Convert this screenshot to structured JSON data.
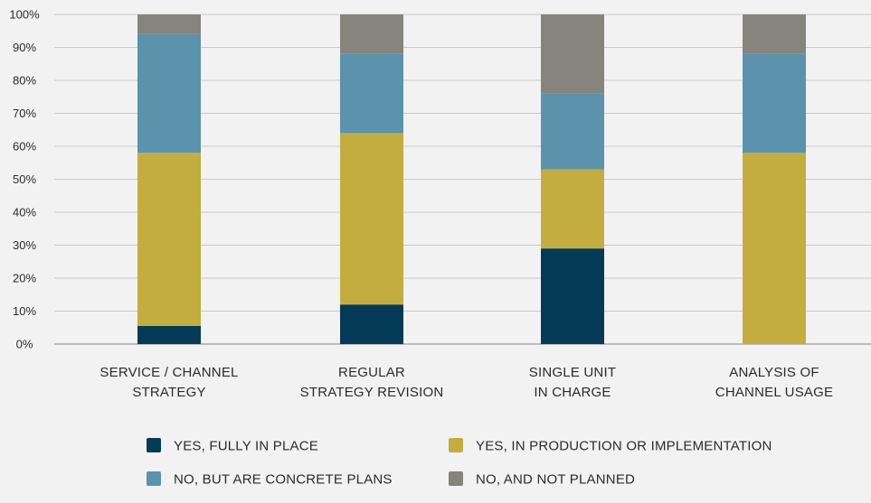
{
  "chart_data": {
    "type": "bar",
    "stacked": true,
    "title": "",
    "xlabel": "",
    "ylabel": "",
    "ylim": [
      0,
      100
    ],
    "yticks": [
      "0%",
      "10%",
      "20%",
      "30%",
      "40%",
      "50%",
      "60%",
      "70%",
      "80%",
      "90%",
      "100%"
    ],
    "grid": true,
    "legend_position": "bottom",
    "categories": [
      [
        "SERVICE / CHANNEL",
        "STRATEGY"
      ],
      [
        "REGULAR",
        "STRATEGY REVISION"
      ],
      [
        "SINGLE UNIT",
        "IN CHARGE"
      ],
      [
        "ANALYSIS OF",
        "CHANNEL USAGE"
      ]
    ],
    "series": [
      {
        "name": "YES, FULLY IN PLACE",
        "color": "#033b57",
        "values": [
          5.5,
          12,
          29,
          0
        ]
      },
      {
        "name": "YES, IN PRODUCTION OR IMPLEMENTATION",
        "color": "#c4ad3f",
        "values": [
          52.5,
          52,
          24,
          58
        ]
      },
      {
        "name": "NO, BUT ARE CONCRETE PLANS",
        "color": "#5b93ad",
        "values": [
          36,
          24,
          23,
          30
        ]
      },
      {
        "name": "NO, AND NOT PLANNED",
        "color": "#86857d",
        "values": [
          6,
          12,
          24,
          12
        ]
      }
    ],
    "legend_order": [
      0,
      1,
      2,
      3
    ]
  }
}
